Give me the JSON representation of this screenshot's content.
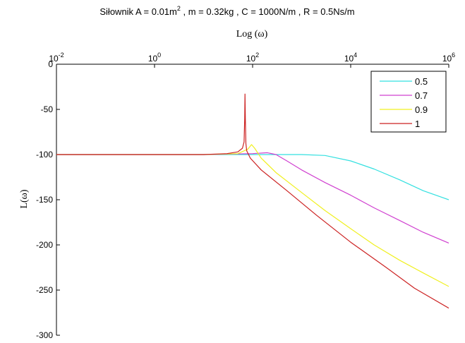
{
  "chart_data": {
    "type": "line",
    "title_prefix": "Siłownik A = 0.01m",
    "title_sup": "2",
    "title_suffix": " , m = 0.32kg , C = 1000N/m , R = 0.5Ns/m",
    "xlabel": "Log (ω)",
    "ylabel": "L(ω)",
    "x_scale": "log",
    "xlim": [
      0.01,
      1000000
    ],
    "ylim": [
      -300,
      0
    ],
    "x_ticks": [
      {
        "value": 0.01,
        "base": "10",
        "exp": "-2"
      },
      {
        "value": 1,
        "base": "10",
        "exp": "0"
      },
      {
        "value": 100,
        "base": "10",
        "exp": "2"
      },
      {
        "value": 10000,
        "base": "10",
        "exp": "4"
      },
      {
        "value": 1000000,
        "base": "10",
        "exp": "6"
      }
    ],
    "y_ticks": [
      0,
      -50,
      -100,
      -150,
      -200,
      -250,
      -300
    ],
    "x_axis_location": "top",
    "grid": false,
    "legend_position": "top-right",
    "series": [
      {
        "name": "0.5",
        "color": "#33e0e0",
        "points": [
          [
            0.01,
            -100
          ],
          [
            100,
            -100
          ],
          [
            1000,
            -100
          ],
          [
            3000,
            -101
          ],
          [
            10000,
            -107
          ],
          [
            30000,
            -116
          ],
          [
            100000,
            -128
          ],
          [
            300000,
            -140
          ],
          [
            1000000,
            -150
          ]
        ]
      },
      {
        "name": "0.7",
        "color": "#d040d0",
        "points": [
          [
            0.01,
            -100
          ],
          [
            10,
            -100
          ],
          [
            100,
            -99
          ],
          [
            200,
            -98
          ],
          [
            300,
            -100
          ],
          [
            500,
            -107
          ],
          [
            1000,
            -117
          ],
          [
            3000,
            -131
          ],
          [
            10000,
            -145
          ],
          [
            30000,
            -159
          ],
          [
            100000,
            -173
          ],
          [
            300000,
            -186
          ],
          [
            1000000,
            -198
          ]
        ]
      },
      {
        "name": "0.9",
        "color": "#f0f020",
        "points": [
          [
            0.01,
            -100
          ],
          [
            10,
            -100
          ],
          [
            50,
            -99
          ],
          [
            80,
            -94
          ],
          [
            95,
            -89
          ],
          [
            110,
            -93
          ],
          [
            150,
            -104
          ],
          [
            300,
            -120
          ],
          [
            1000,
            -142
          ],
          [
            3000,
            -162
          ],
          [
            10000,
            -182
          ],
          [
            30000,
            -200
          ],
          [
            100000,
            -217
          ],
          [
            300000,
            -231
          ],
          [
            1000000,
            -246
          ]
        ]
      },
      {
        "name": "1",
        "color": "#cc2222",
        "points": [
          [
            0.01,
            -100
          ],
          [
            1,
            -100
          ],
          [
            10,
            -100
          ],
          [
            30,
            -99
          ],
          [
            50,
            -97
          ],
          [
            62,
            -93
          ],
          [
            67,
            -86
          ],
          [
            69,
            -60
          ],
          [
            70,
            -33
          ],
          [
            71,
            -60
          ],
          [
            73,
            -88
          ],
          [
            76,
            -96
          ],
          [
            90,
            -104
          ],
          [
            150,
            -117
          ],
          [
            500,
            -140
          ],
          [
            2000,
            -167
          ],
          [
            10000,
            -197
          ],
          [
            50000,
            -224
          ],
          [
            200000,
            -248
          ],
          [
            1000000,
            -270
          ]
        ]
      }
    ]
  }
}
